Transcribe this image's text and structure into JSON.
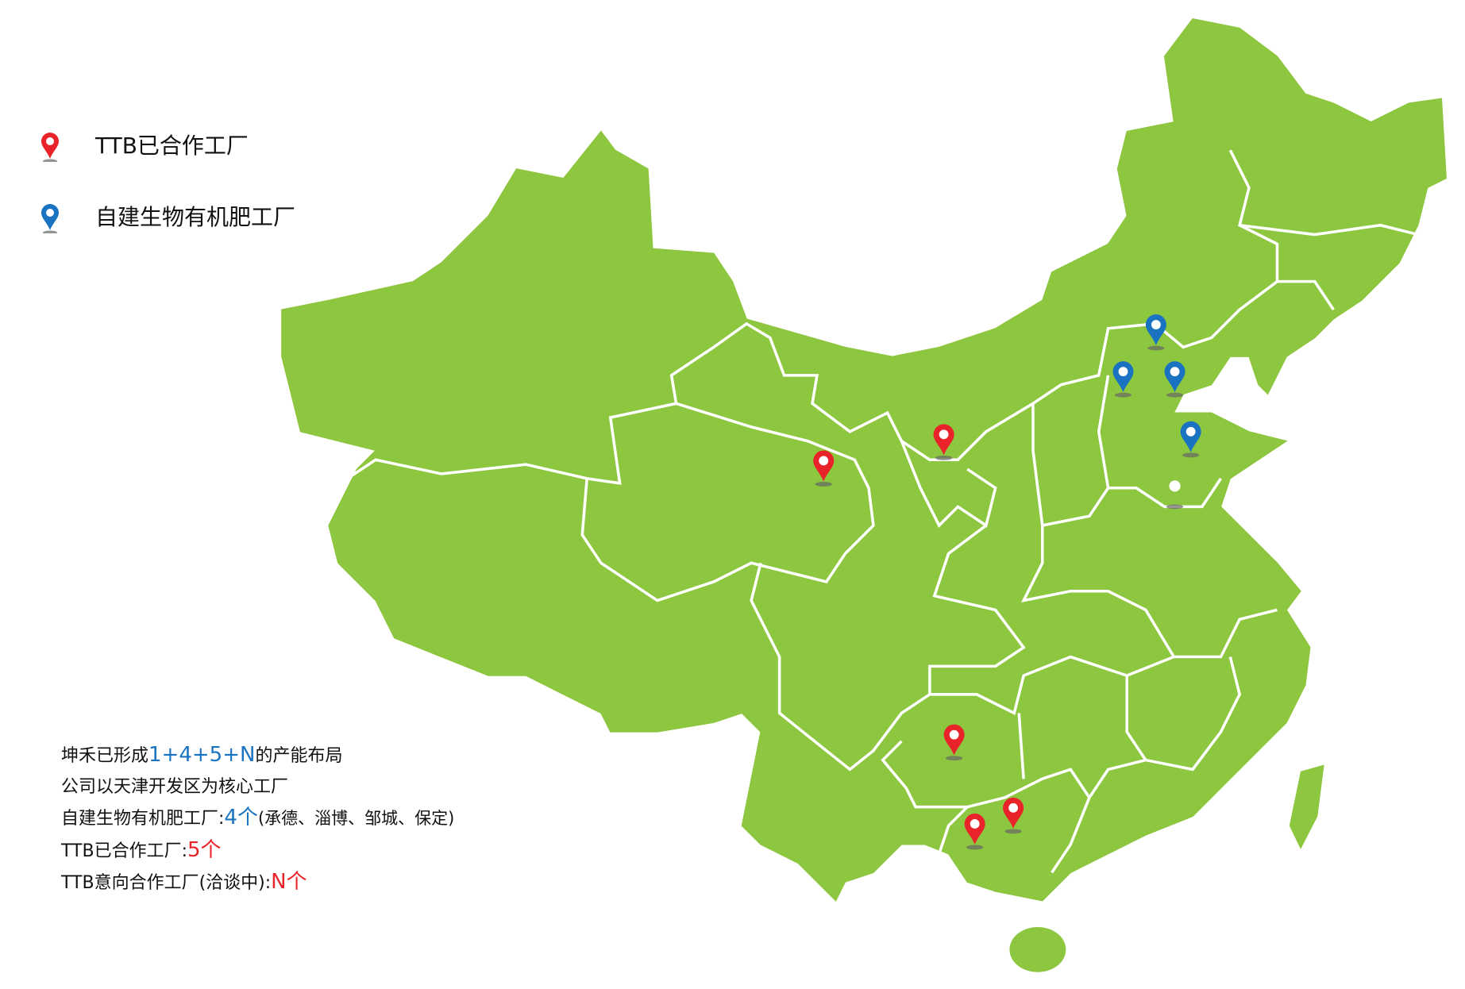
{
  "legend": [
    {
      "label": "TTB已合作工厂",
      "icon": "red-map-pin-icon",
      "color": "#e8242a"
    },
    {
      "label": "自建生物有机肥工厂",
      "icon": "blue-map-pin-icon",
      "color": "#1a73c0"
    }
  ],
  "map": {
    "fill_color": "#8dc63f",
    "border_color": "#ffffff"
  },
  "info": {
    "line1_prefix": "坤禾已形成",
    "line1_highlight": "1+4+5+N",
    "line1_suffix": "的产能布局",
    "line2": "公司以天津开发区为核心工厂",
    "line3_prefix": "自建生物有机肥工厂:",
    "line3_highlight": "4个",
    "line3_suffix": "(承德、淄博、邹城、保定)",
    "line4_prefix": "TTB已合作工厂:",
    "line4_highlight": "5个",
    "line5_prefix": "TTB意向合作工厂(洽谈中):",
    "line5_highlight": "N个"
  }
}
